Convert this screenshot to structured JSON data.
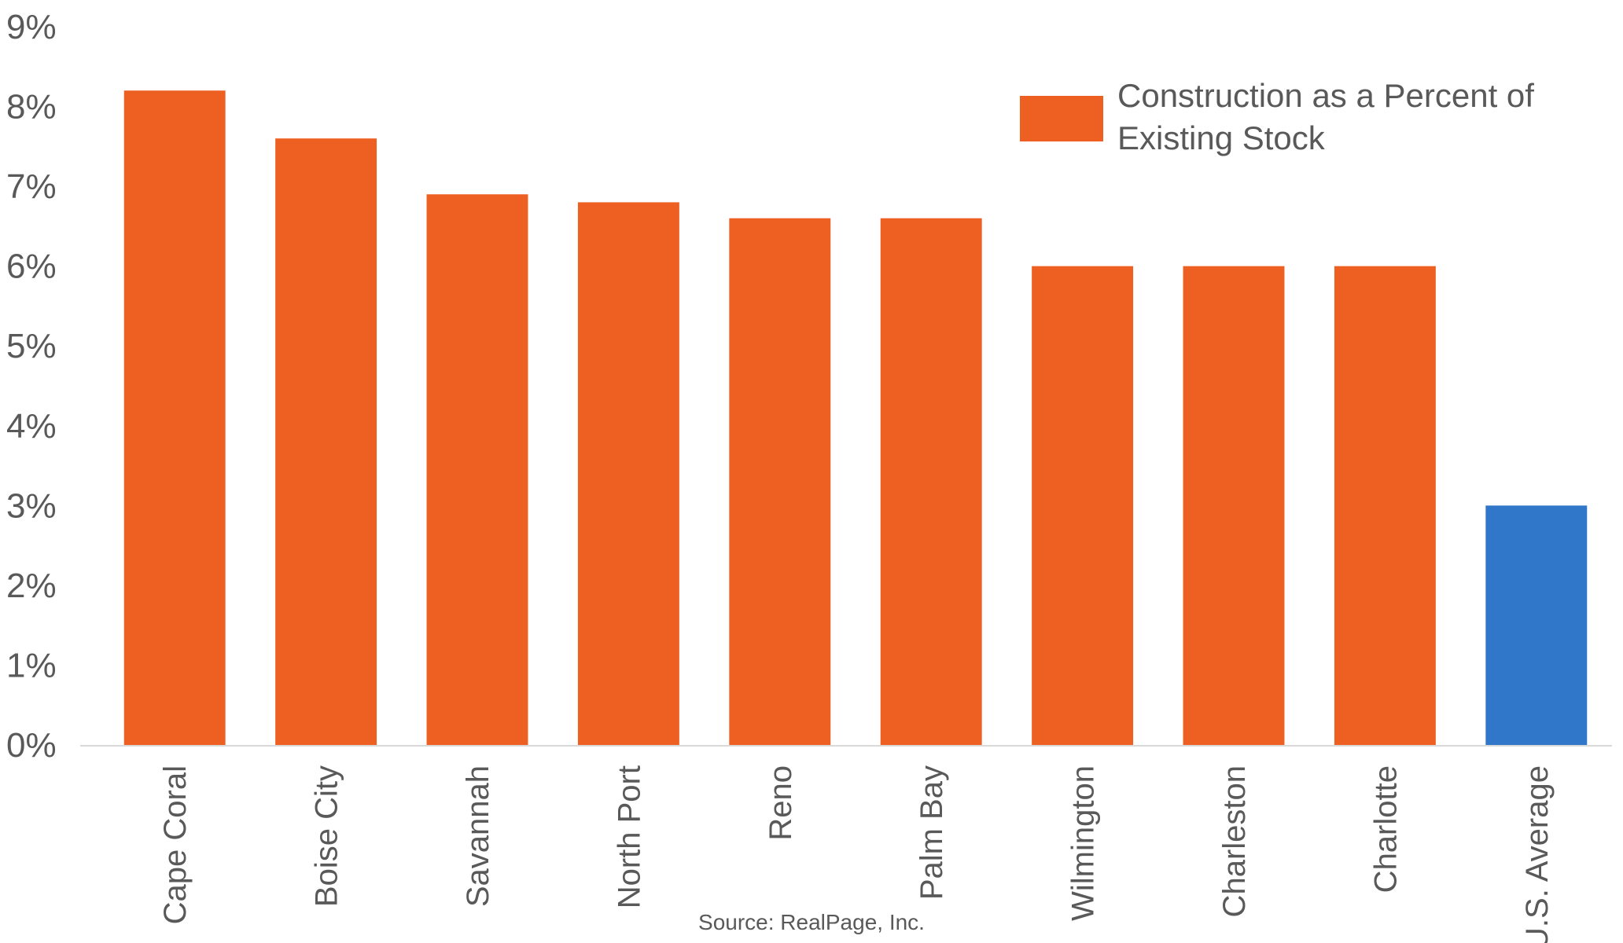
{
  "chart_data": {
    "type": "bar",
    "categories": [
      "Cape Coral",
      "Boise City",
      "Savannah",
      "North Port",
      "Reno",
      "Palm Bay",
      "Wilmington",
      "Charleston",
      "Charlotte",
      "U.S. Average"
    ],
    "series": [
      {
        "name": "Construction as a Percent of Existing Stock",
        "values": [
          8.2,
          7.6,
          6.9,
          6.8,
          6.6,
          6.6,
          6.0,
          6.0,
          6.0,
          3.0
        ]
      }
    ],
    "bar_colors": [
      "#EE5F22",
      "#EE5F22",
      "#EE5F22",
      "#EE5F22",
      "#EE5F22",
      "#EE5F22",
      "#EE5F22",
      "#EE5F22",
      "#EE5F22",
      "#3077C9"
    ],
    "series_color": "#EE5F22",
    "highlight_color": "#3077C9",
    "yticks": [
      "0%",
      "1%",
      "2%",
      "3%",
      "4%",
      "5%",
      "6%",
      "7%",
      "8%",
      "9%"
    ],
    "ylim": [
      0,
      9
    ],
    "title": "",
    "xlabel": "",
    "ylabel": "",
    "grid": false,
    "legend_position": "top-right",
    "legend_lines": [
      "Construction as a Percent of",
      "Existing Stock"
    ],
    "source": "Source: RealPage, Inc."
  }
}
